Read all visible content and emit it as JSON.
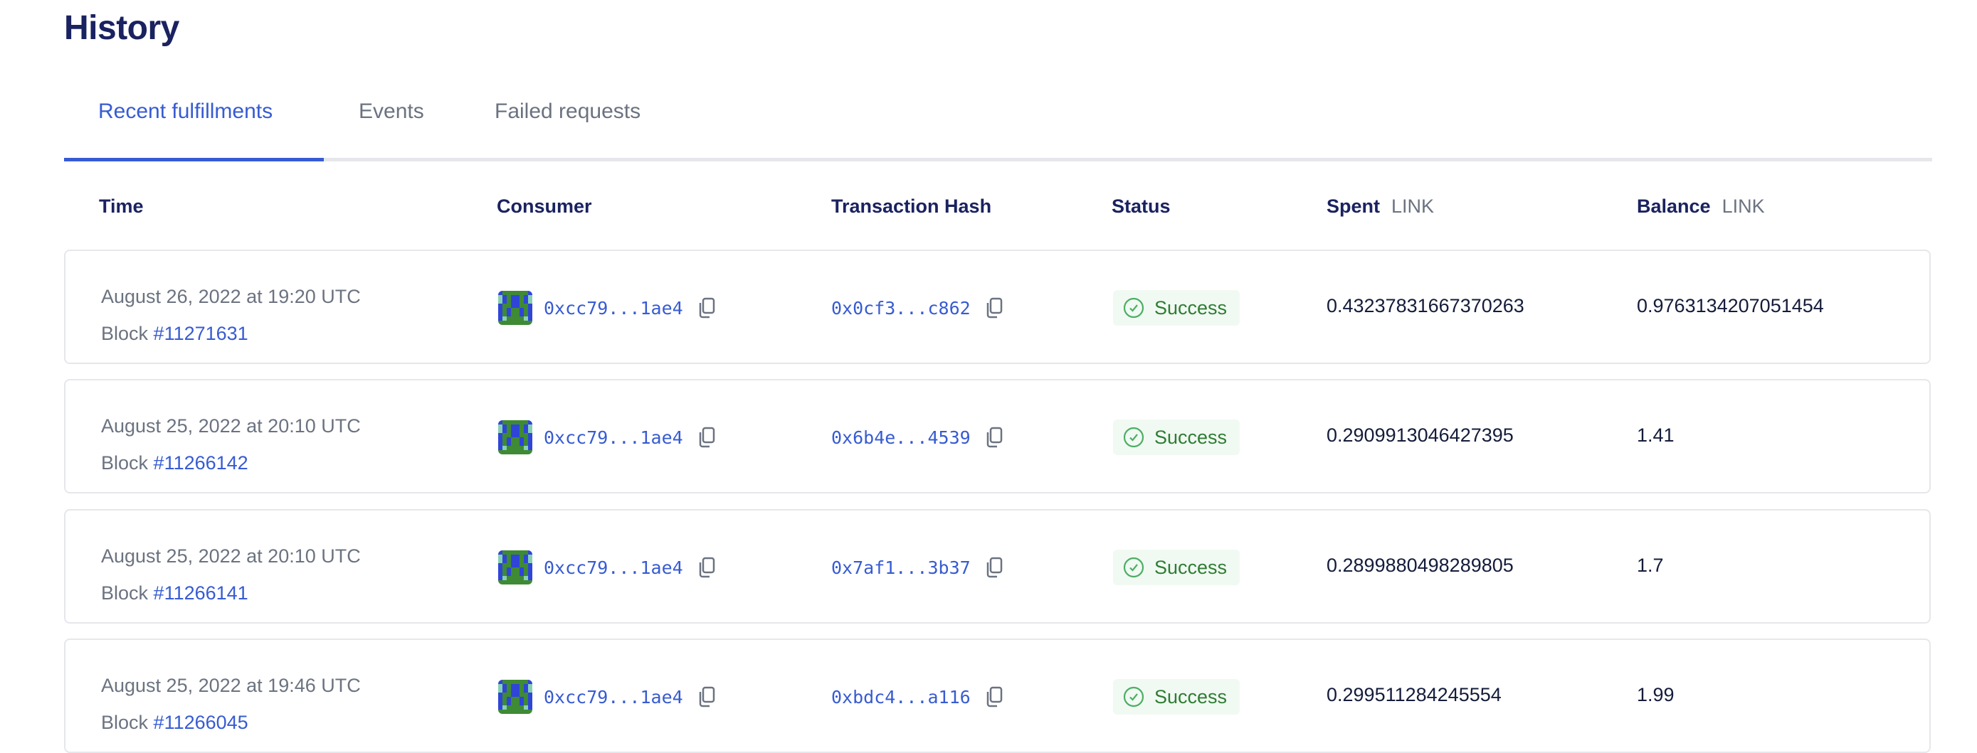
{
  "page": {
    "title": "History"
  },
  "tabs": [
    {
      "label": "Recent fulfillments",
      "active": true
    },
    {
      "label": "Events",
      "active": false
    },
    {
      "label": "Failed requests",
      "active": false
    }
  ],
  "columns": {
    "time": "Time",
    "consumer": "Consumer",
    "tx_hash": "Transaction Hash",
    "status": "Status",
    "spent": "Spent",
    "spent_unit": "LINK",
    "balance": "Balance",
    "balance_unit": "LINK"
  },
  "colors": {
    "accent": "#375bd2",
    "success": "#2e7d32",
    "success_bg": "#f1f9f3"
  },
  "rows": [
    {
      "time": "August 26, 2022 at 19:20 UTC",
      "block_label": "Block",
      "block": "#11271631",
      "consumer": "0xcc79...1ae4",
      "tx_hash": "0x0cf3...c862",
      "status": "Success",
      "spent": "0.43237831667370263",
      "balance": "0.9763134207051454"
    },
    {
      "time": "August 25, 2022 at 20:10 UTC",
      "block_label": "Block",
      "block": "#11266142",
      "consumer": "0xcc79...1ae4",
      "tx_hash": "0x6b4e...4539",
      "status": "Success",
      "spent": "0.2909913046427395",
      "balance": "1.41"
    },
    {
      "time": "August 25, 2022 at 20:10 UTC",
      "block_label": "Block",
      "block": "#11266141",
      "consumer": "0xcc79...1ae4",
      "tx_hash": "0x7af1...3b37",
      "status": "Success",
      "spent": "0.2899880498289805",
      "balance": "1.7"
    },
    {
      "time": "August 25, 2022 at 19:46 UTC",
      "block_label": "Block",
      "block": "#11266045",
      "consumer": "0xcc79...1ae4",
      "tx_hash": "0xbdc4...a116",
      "status": "Success",
      "spent": "0.299511284245554",
      "balance": "1.99"
    }
  ]
}
